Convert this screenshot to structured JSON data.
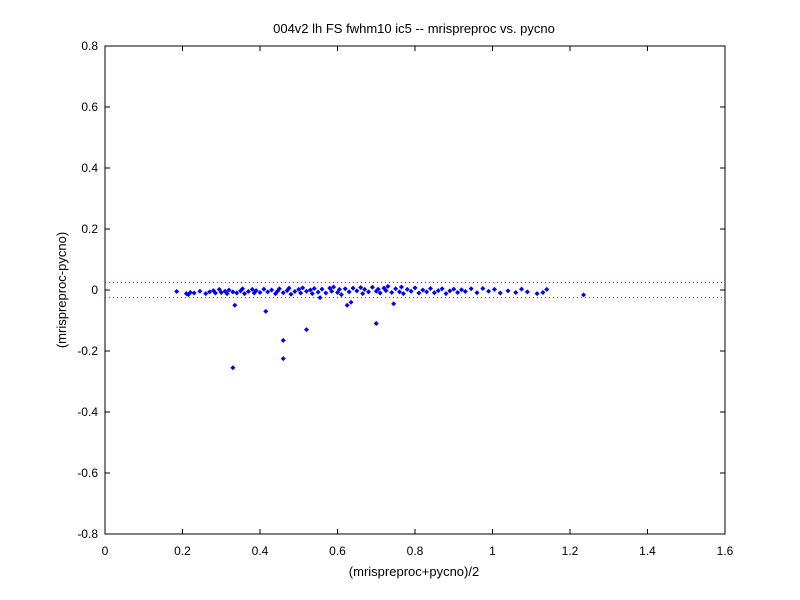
{
  "chart_data": {
    "type": "scatter",
    "title": "004v2 lh FS fwhm10 ic5 -- mrispreproc vs. pycno",
    "xlabel": "(mrispreproc+pycno)/2",
    "ylabel": "(mrispreproc-pycno)",
    "xlim": [
      0,
      1.6
    ],
    "ylim": [
      -0.8,
      0.8
    ],
    "xticks": [
      0,
      0.2,
      0.4,
      0.6,
      0.8,
      1,
      1.2,
      1.4,
      1.6
    ],
    "yticks": [
      -0.8,
      -0.6,
      -0.4,
      -0.2,
      0,
      0.2,
      0.4,
      0.6,
      0.8
    ],
    "xtick_labels": [
      "0",
      "0.2",
      "0.4",
      "0.6",
      "0.8",
      "1",
      "1.2",
      "1.4",
      "1.6"
    ],
    "ytick_labels": [
      "-0.8",
      "-0.6",
      "-0.4",
      "-0.2",
      "0",
      "0.2",
      "0.4",
      "0.6",
      "0.8"
    ],
    "grid": false,
    "colors": {
      "points": "#0000ff",
      "reference_lines": "#ff0000",
      "axes": "#000000"
    },
    "reference_lines": [
      {
        "orientation": "horizontal",
        "y": 0.025,
        "style": "dotted"
      },
      {
        "orientation": "horizontal",
        "y": -0.025,
        "style": "dotted"
      }
    ],
    "series": [
      {
        "marker": "dot",
        "color": "#0000ff",
        "points": [
          [
            0.185,
            -0.005
          ],
          [
            0.21,
            -0.012
          ],
          [
            0.215,
            -0.015
          ],
          [
            0.22,
            -0.008
          ],
          [
            0.23,
            -0.01
          ],
          [
            0.245,
            -0.004
          ],
          [
            0.26,
            -0.012
          ],
          [
            0.27,
            -0.006
          ],
          [
            0.28,
            -0.002
          ],
          [
            0.285,
            -0.01
          ],
          [
            0.295,
            0.002
          ],
          [
            0.3,
            -0.008
          ],
          [
            0.31,
            -0.004
          ],
          [
            0.315,
            -0.012
          ],
          [
            0.32,
            0.0
          ],
          [
            0.33,
            -0.006
          ],
          [
            0.335,
            -0.05
          ],
          [
            0.34,
            -0.01
          ],
          [
            0.35,
            -0.003
          ],
          [
            0.355,
            0.004
          ],
          [
            0.36,
            -0.012
          ],
          [
            0.37,
            -0.005
          ],
          [
            0.38,
            0.002
          ],
          [
            0.385,
            -0.01
          ],
          [
            0.39,
            -0.002
          ],
          [
            0.4,
            -0.008
          ],
          [
            0.41,
            0.003
          ],
          [
            0.415,
            -0.07
          ],
          [
            0.42,
            -0.006
          ],
          [
            0.43,
            0.0
          ],
          [
            0.44,
            -0.012
          ],
          [
            0.445,
            -0.004
          ],
          [
            0.45,
            0.004
          ],
          [
            0.46,
            -0.009
          ],
          [
            0.47,
            -0.002
          ],
          [
            0.475,
            0.006
          ],
          [
            0.48,
            -0.014
          ],
          [
            0.49,
            -0.005
          ],
          [
            0.5,
            0.002
          ],
          [
            0.505,
            -0.01
          ],
          [
            0.51,
            0.007
          ],
          [
            0.52,
            -0.004
          ],
          [
            0.53,
            0.0
          ],
          [
            0.535,
            -0.012
          ],
          [
            0.54,
            0.005
          ],
          [
            0.55,
            -0.007
          ],
          [
            0.555,
            -0.025
          ],
          [
            0.56,
            0.003
          ],
          [
            0.57,
            -0.01
          ],
          [
            0.58,
            0.006
          ],
          [
            0.585,
            -0.004
          ],
          [
            0.59,
            0.01
          ],
          [
            0.6,
            -0.008
          ],
          [
            0.605,
            0.002
          ],
          [
            0.61,
            -0.015
          ],
          [
            0.62,
            0.004
          ],
          [
            0.625,
            -0.05
          ],
          [
            0.63,
            -0.006
          ],
          [
            0.635,
            -0.04
          ],
          [
            0.64,
            0.006
          ],
          [
            0.65,
            -0.003
          ],
          [
            0.66,
            0.008
          ],
          [
            0.665,
            -0.012
          ],
          [
            0.67,
            0.002
          ],
          [
            0.68,
            -0.006
          ],
          [
            0.69,
            0.009
          ],
          [
            0.7,
            -0.004
          ],
          [
            0.705,
            0.003
          ],
          [
            0.71,
            -0.01
          ],
          [
            0.72,
            0.006
          ],
          [
            0.725,
            -0.002
          ],
          [
            0.73,
            0.012
          ],
          [
            0.74,
            -0.008
          ],
          [
            0.745,
            -0.045
          ],
          [
            0.75,
            0.004
          ],
          [
            0.76,
            -0.006
          ],
          [
            0.765,
            0.01
          ],
          [
            0.77,
            -0.012
          ],
          [
            0.78,
            0.002
          ],
          [
            0.79,
            -0.004
          ],
          [
            0.8,
            0.007
          ],
          [
            0.81,
            -0.01
          ],
          [
            0.82,
            0.0
          ],
          [
            0.83,
            -0.006
          ],
          [
            0.84,
            0.005
          ],
          [
            0.85,
            -0.009
          ],
          [
            0.86,
            -0.002
          ],
          [
            0.87,
            0.004
          ],
          [
            0.88,
            -0.012
          ],
          [
            0.89,
            -0.003
          ],
          [
            0.9,
            0.003
          ],
          [
            0.91,
            -0.008
          ],
          [
            0.92,
            0.001
          ],
          [
            0.93,
            -0.005
          ],
          [
            0.945,
            0.004
          ],
          [
            0.96,
            -0.009
          ],
          [
            0.975,
            0.005
          ],
          [
            0.99,
            -0.004
          ],
          [
            1.005,
            0.002
          ],
          [
            1.02,
            -0.01
          ],
          [
            1.04,
            -0.003
          ],
          [
            1.06,
            -0.008
          ],
          [
            1.075,
            0.003
          ],
          [
            1.09,
            -0.006
          ],
          [
            1.115,
            -0.012
          ],
          [
            1.13,
            -0.008
          ],
          [
            1.14,
            0.002
          ],
          [
            1.235,
            -0.016
          ],
          [
            0.33,
            -0.255
          ],
          [
            0.46,
            -0.165
          ],
          [
            0.46,
            -0.225
          ],
          [
            0.52,
            -0.13
          ],
          [
            0.7,
            -0.11
          ]
        ]
      }
    ]
  }
}
